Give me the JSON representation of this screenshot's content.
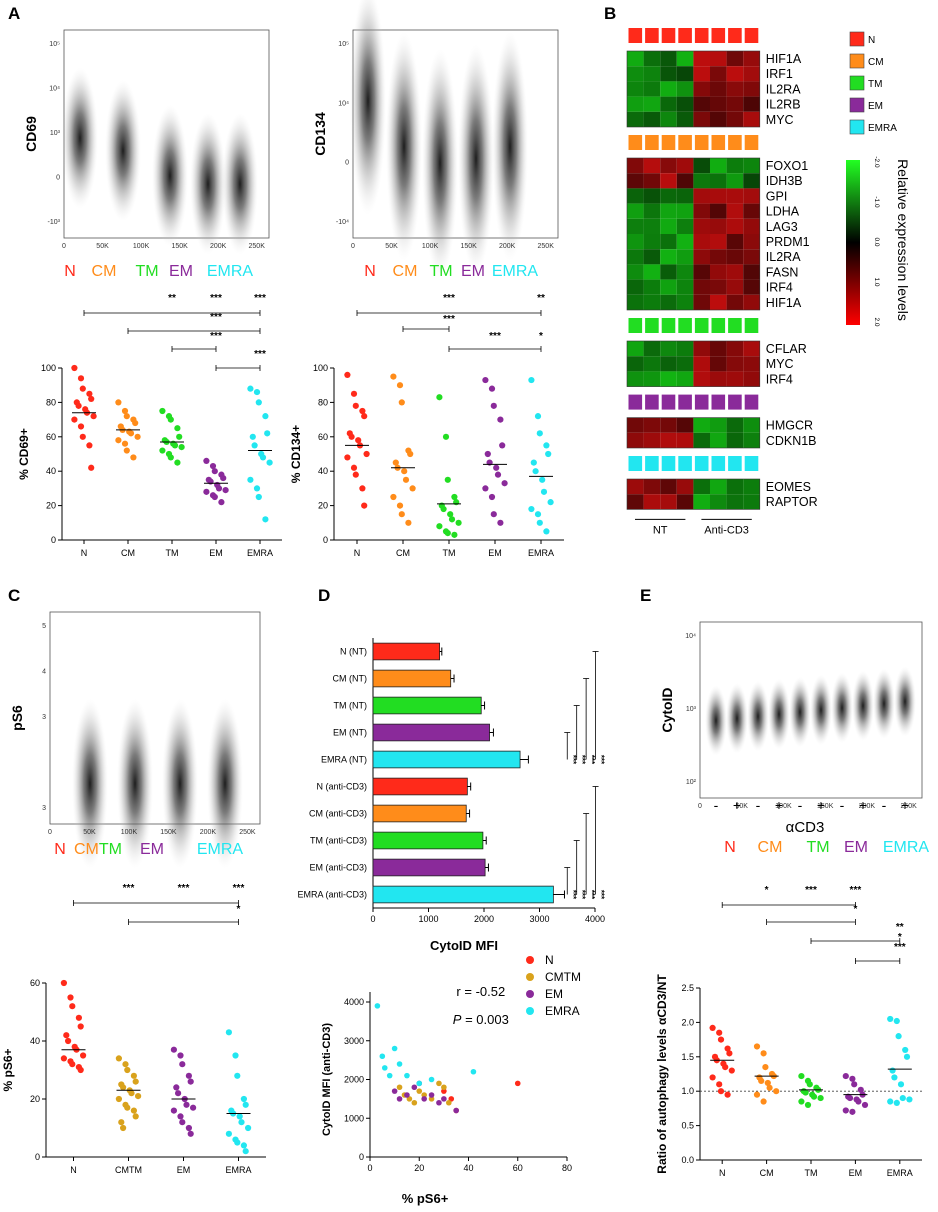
{
  "panels": {
    "A": "A",
    "B": "B",
    "C": "C",
    "D": "D",
    "E": "E"
  },
  "colors": {
    "N": "#ff2a1a",
    "CM": "#ff8c1a",
    "CMTM": "#d9a21c",
    "TM": "#22dd22",
    "EM": "#8a2a9a",
    "EMRA": "#22e6f0"
  },
  "flow_plots": [
    {
      "id": "cd69",
      "ylabel": "CD69",
      "yticks": [
        "10⁵",
        "10⁴",
        "10³",
        "0",
        "-10³"
      ],
      "xticks": [
        "0",
        "50K",
        "100K",
        "150K",
        "200K",
        "250K"
      ],
      "pops": [
        "N",
        "CM",
        "TM",
        "EM",
        "EMRA"
      ]
    },
    {
      "id": "cd134",
      "ylabel": "CD134",
      "yticks": [
        "10⁵",
        "10⁴",
        "0",
        "-10⁴"
      ],
      "xticks": [
        "0",
        "50K",
        "100K",
        "150K",
        "200K",
        "250K"
      ],
      "pops": [
        "N",
        "CM",
        "TM",
        "EM",
        "EMRA"
      ]
    },
    {
      "id": "ps6",
      "ylabel": "pS6",
      "yticks": [
        "5",
        "4",
        "3",
        "",
        "3"
      ],
      "xticks": [
        "0",
        "50K",
        "100K",
        "150K",
        "200K",
        "250K"
      ],
      "pops": [
        "N",
        "CMTM",
        "EM",
        "EMRA"
      ]
    },
    {
      "id": "cytoid",
      "ylabel": "CytoID",
      "yticks": [
        "10⁴",
        "10³",
        "10²"
      ],
      "xticks": [
        "0",
        "50K",
        "100K",
        "150K",
        "200K",
        "250K"
      ],
      "pops": [
        "N",
        "CM",
        "TM",
        "EM",
        "EMRA"
      ],
      "signs": [
        "-",
        "+",
        "-",
        "+",
        "-",
        "+",
        "-",
        "+",
        "-",
        "+"
      ],
      "xlabel": "αCD3"
    }
  ],
  "chart_data": [
    {
      "id": "cd69-dot",
      "type": "scatter",
      "ylabel": "% CD69+",
      "ylim": [
        0,
        100
      ],
      "yticks": [
        0,
        20,
        40,
        60,
        80,
        100
      ],
      "categories": [
        "N",
        "CM",
        "TM",
        "EM",
        "EMRA"
      ],
      "means": [
        74,
        64,
        57,
        33,
        52
      ],
      "sig_marks": [
        "**",
        "***",
        "***",
        "***",
        "***",
        "***"
      ],
      "series": [
        {
          "name": "N",
          "values": [
            100,
            94,
            88,
            85,
            82,
            80,
            78,
            76,
            74,
            72,
            70,
            66,
            60,
            55,
            42
          ]
        },
        {
          "name": "CM",
          "values": [
            80,
            75,
            72,
            70,
            68,
            66,
            64,
            63,
            62,
            60,
            58,
            56,
            52,
            48
          ]
        },
        {
          "name": "TM",
          "values": [
            75,
            72,
            70,
            65,
            60,
            58,
            57,
            56,
            55,
            54,
            52,
            50,
            48,
            45
          ]
        },
        {
          "name": "EM",
          "values": [
            46,
            43,
            40,
            38,
            36,
            35,
            34,
            32,
            30,
            29,
            28,
            26,
            25,
            22
          ]
        },
        {
          "name": "EMRA",
          "values": [
            88,
            86,
            80,
            72,
            62,
            60,
            55,
            50,
            48,
            45,
            35,
            30,
            25,
            12
          ]
        }
      ]
    },
    {
      "id": "cd134-dot",
      "type": "scatter",
      "ylabel": "% CD134+",
      "ylim": [
        0,
        100
      ],
      "yticks": [
        0,
        20,
        40,
        60,
        80,
        100
      ],
      "categories": [
        "N",
        "CM",
        "TM",
        "EM",
        "EMRA"
      ],
      "means": [
        55,
        42,
        21,
        44,
        37
      ],
      "sig_marks": [
        "***",
        "**",
        "***",
        "***",
        "*"
      ],
      "series": [
        {
          "name": "N",
          "values": [
            96,
            85,
            78,
            75,
            72,
            62,
            60,
            58,
            55,
            50,
            48,
            42,
            38,
            30,
            20
          ]
        },
        {
          "name": "CM",
          "values": [
            95,
            90,
            80,
            52,
            50,
            45,
            42,
            40,
            35,
            30,
            25,
            20,
            15,
            10
          ]
        },
        {
          "name": "TM",
          "values": [
            83,
            60,
            35,
            25,
            22,
            20,
            18,
            15,
            12,
            10,
            8,
            5,
            4,
            3
          ]
        },
        {
          "name": "EM",
          "values": [
            93,
            88,
            78,
            70,
            55,
            50,
            45,
            42,
            38,
            33,
            30,
            25,
            15,
            10
          ]
        },
        {
          "name": "EMRA",
          "values": [
            93,
            72,
            62,
            55,
            50,
            45,
            40,
            35,
            28,
            22,
            18,
            15,
            10,
            5
          ]
        }
      ]
    },
    {
      "id": "ps6-dot",
      "type": "scatter",
      "ylabel": "% pS6+",
      "ylim": [
        0,
        60
      ],
      "yticks": [
        0,
        20,
        40,
        60
      ],
      "categories": [
        "N",
        "CMTM",
        "EM",
        "EMRA"
      ],
      "means": [
        37,
        23,
        20,
        15
      ],
      "sig_marks": [
        "***",
        "***",
        "***",
        "*"
      ],
      "series": [
        {
          "name": "N",
          "values": [
            60,
            55,
            52,
            48,
            45,
            42,
            40,
            38,
            37,
            35,
            34,
            33,
            32,
            31,
            30
          ]
        },
        {
          "name": "CMTM",
          "values": [
            34,
            32,
            30,
            28,
            26,
            25,
            24,
            23,
            22,
            21,
            20,
            18,
            17,
            16,
            14,
            12,
            10
          ]
        },
        {
          "name": "EM",
          "values": [
            37,
            35,
            32,
            28,
            26,
            24,
            22,
            20,
            18,
            17,
            16,
            14,
            12,
            10,
            8
          ]
        },
        {
          "name": "EMRA",
          "values": [
            43,
            35,
            28,
            20,
            18,
            16,
            15,
            14,
            12,
            10,
            8,
            6,
            5,
            4,
            2
          ]
        }
      ]
    },
    {
      "id": "autophagy-dot",
      "type": "scatter",
      "ylabel": "Ratio of autophagy levels αCD3/NT",
      "ylim": [
        0,
        2.5
      ],
      "yticks": [
        "0.0",
        "0.5",
        "1.0",
        "1.5",
        "2.0",
        "2.5"
      ],
      "categories": [
        "N",
        "CM",
        "TM",
        "EM",
        "EMRA"
      ],
      "means": [
        1.45,
        1.22,
        1.02,
        0.95,
        1.32
      ],
      "sig_marks": [
        "*",
        "***",
        "***",
        "*",
        "**",
        "*",
        "***"
      ],
      "series": [
        {
          "name": "N",
          "values": [
            1.92,
            1.85,
            1.75,
            1.62,
            1.55,
            1.5,
            1.45,
            1.4,
            1.35,
            1.3,
            1.2,
            1.1,
            1.0,
            0.95
          ]
        },
        {
          "name": "CM",
          "values": [
            1.65,
            1.55,
            1.35,
            1.25,
            1.22,
            1.2,
            1.15,
            1.12,
            1.05,
            1.0,
            0.95,
            0.85
          ]
        },
        {
          "name": "TM",
          "values": [
            1.22,
            1.15,
            1.1,
            1.05,
            1.02,
            1.0,
            0.98,
            0.95,
            0.92,
            0.9,
            0.85,
            0.8
          ]
        },
        {
          "name": "EM",
          "values": [
            1.22,
            1.18,
            1.1,
            1.02,
            0.95,
            0.92,
            0.9,
            0.88,
            0.85,
            0.8,
            0.72,
            0.7
          ]
        },
        {
          "name": "EMRA",
          "values": [
            2.05,
            2.02,
            1.8,
            1.6,
            1.5,
            1.3,
            1.2,
            1.1,
            0.9,
            0.88,
            0.85,
            0.83
          ]
        }
      ]
    },
    {
      "id": "cytoid-bar",
      "type": "bar",
      "orientation": "horizontal",
      "xlabel": "CytoID MFI",
      "xlim": [
        0,
        4000
      ],
      "xticks": [
        0,
        1000,
        2000,
        3000,
        4000
      ],
      "categories": [
        "N (NT)",
        "CM (NT)",
        "TM (NT)",
        "EM (NT)",
        "EMRA (NT)",
        "N (anti-CD3)",
        "CM (anti-CD3)",
        "TM (anti-CD3)",
        "EM (anti-CD3)",
        "EMRA (anti-CD3)"
      ],
      "values": [
        1200,
        1400,
        1950,
        2100,
        2650,
        1700,
        1680,
        1980,
        2020,
        3250
      ],
      "errors": [
        40,
        60,
        60,
        70,
        150,
        60,
        60,
        60,
        60,
        200
      ],
      "bar_colors": [
        "N",
        "CM",
        "TM",
        "EM",
        "EMRA",
        "N",
        "CM",
        "TM",
        "EM",
        "EMRA"
      ],
      "stars": "***"
    },
    {
      "id": "cytoid-scatter",
      "type": "scatter",
      "xlabel": "% pS6+",
      "ylabel": "CytoID MFI (anti-CD3)",
      "xlim": [
        0,
        80
      ],
      "ylim": [
        0,
        4000
      ],
      "xticks": [
        0,
        20,
        40,
        60,
        80
      ],
      "yticks": [
        0,
        1000,
        2000,
        3000,
        4000
      ],
      "r_text": "r = -0.52",
      "p_label": "P",
      "p_value": " = 0.003",
      "series": [
        {
          "name": "N",
          "x": [
            60,
            35,
            33,
            30
          ],
          "y": [
            1900,
            1200,
            1500,
            1700
          ]
        },
        {
          "name": "CMTM",
          "x": [
            12,
            14,
            16,
            18,
            20,
            22,
            25,
            28,
            30,
            32
          ],
          "y": [
            1800,
            1600,
            1500,
            1400,
            1700,
            1600,
            1500,
            1900,
            1800,
            1400
          ]
        },
        {
          "name": "EM",
          "x": [
            10,
            12,
            15,
            18,
            20,
            22,
            25,
            28,
            30,
            35
          ],
          "y": [
            1700,
            1500,
            1600,
            1800,
            1900,
            1500,
            1600,
            1400,
            1500,
            1200
          ]
        },
        {
          "name": "EMRA",
          "x": [
            3,
            5,
            6,
            8,
            10,
            12,
            15,
            20,
            25,
            42
          ],
          "y": [
            3900,
            2600,
            2300,
            2100,
            2800,
            2400,
            2100,
            1900,
            2000,
            2200
          ]
        }
      ],
      "legend": [
        "N",
        "CMTM",
        "EM",
        "EMRA"
      ]
    }
  ],
  "heatmap": {
    "blocks": [
      {
        "color": "N",
        "genes": [
          "HIF1A",
          "IRF1",
          "IL2RA",
          "IL2RB",
          "MYC"
        ]
      },
      {
        "color": "CM",
        "genes": [
          "FOXO1",
          "IDH3B",
          "GPI",
          "LDHA",
          "LAG3",
          "PRDM1",
          "IL2RA",
          "FASN",
          "IRF4",
          "HIF1A"
        ]
      },
      {
        "color": "TM",
        "genes": [
          "CFLAR",
          "MYC",
          "IRF4"
        ]
      },
      {
        "color": "EM",
        "genes": [
          "HMGCR",
          "CDKN1B"
        ]
      },
      {
        "color": "EMRA",
        "genes": [
          "EOMES",
          "RAPTOR"
        ]
      }
    ],
    "direction": [
      "down",
      "down",
      "down",
      "down",
      "down",
      "up",
      "up",
      "down",
      "down",
      "down",
      "down",
      "down",
      "down",
      "down",
      "down",
      "down",
      "down",
      "down",
      "up",
      "up",
      "up",
      "up"
    ],
    "group_labels": [
      "NT",
      "Anti-CD3"
    ],
    "legend": [
      "N",
      "CM",
      "TM",
      "EM",
      "EMRA"
    ],
    "scale_ticks": [
      "-2.0",
      "-1.0",
      "0.0",
      "1.0",
      "2.0"
    ],
    "scale_title": "Relative expression levels"
  }
}
